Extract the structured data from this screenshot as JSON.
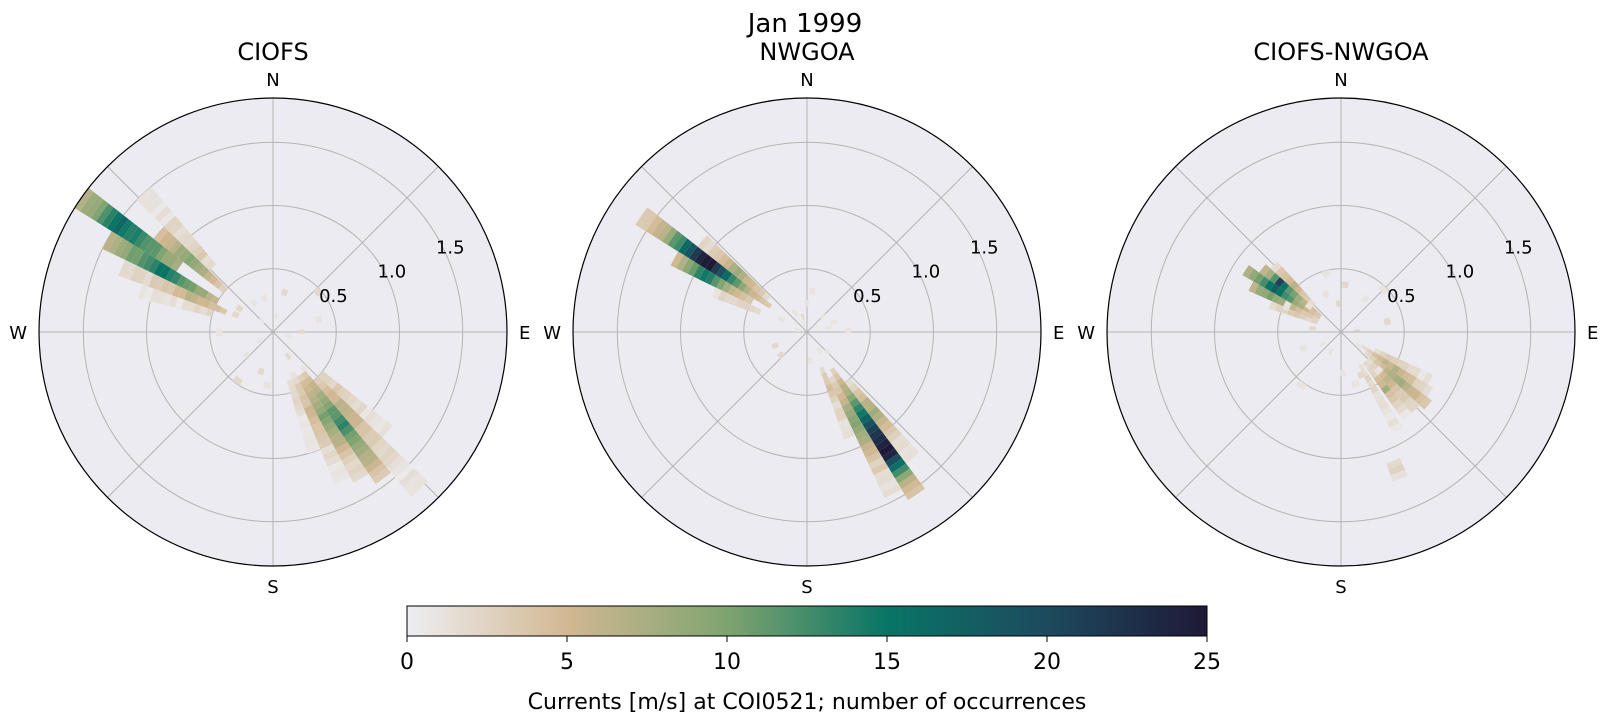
{
  "figure": {
    "title": "Jan 1999"
  },
  "chart_data": [
    {
      "type": "polar-histogram",
      "title": "CIOFS",
      "direction_labels": [
        "N",
        "E",
        "S",
        "W"
      ],
      "r_ticks": [
        0.5,
        1.0,
        1.5
      ],
      "r_tick_labels": [
        "0.5",
        "1.0",
        "1.5"
      ],
      "rlim": [
        0,
        1.85
      ],
      "grid": true,
      "speed_bin_width": 0.05,
      "bins": [
        {
          "dir": 305,
          "width": 6,
          "r0": 0.9,
          "r1": 1.85,
          "counts": [
            7,
            8,
            9,
            10,
            11,
            12,
            12,
            13,
            14,
            14,
            15,
            16,
            15,
            14,
            12,
            10,
            9,
            8,
            7
          ]
        },
        {
          "dir": 299,
          "width": 6,
          "r0": 0.5,
          "r1": 1.5,
          "counts": [
            6,
            7,
            8,
            9,
            10,
            11,
            12,
            13,
            14,
            15,
            15,
            14,
            13,
            12,
            11,
            10,
            9,
            8,
            7,
            6
          ]
        },
        {
          "dir": 311,
          "width": 6,
          "r0": 0.5,
          "r1": 1.2,
          "counts": [
            3,
            4,
            5,
            6,
            7,
            8,
            9,
            10,
            9,
            8,
            7,
            6,
            5,
            4
          ]
        },
        {
          "dir": 293,
          "width": 6,
          "r0": 0.4,
          "r1": 1.3,
          "counts": [
            3,
            4,
            4,
            5,
            5,
            6,
            6,
            5,
            5,
            4,
            4,
            3,
            3,
            2,
            2,
            2,
            2,
            2
          ]
        },
        {
          "dir": 317,
          "width": 6,
          "r0": 0.7,
          "r1": 1.5,
          "counts": [
            2,
            2,
            3,
            3,
            2,
            2,
            2,
            2,
            2,
            2,
            1,
            1,
            1,
            1,
            1,
            1
          ]
        },
        {
          "dir": 287,
          "width": 6,
          "r0": 0.5,
          "r1": 1.1,
          "counts": [
            2,
            2,
            2,
            2,
            1,
            1,
            1,
            1,
            1,
            1,
            1,
            1
          ]
        },
        {
          "dir": 143,
          "width": 6,
          "r0": 0.4,
          "r1": 1.45,
          "counts": [
            4,
            5,
            6,
            7,
            8,
            9,
            10,
            11,
            12,
            13,
            13,
            12,
            11,
            10,
            9,
            8,
            7,
            6,
            5,
            4,
            3
          ]
        },
        {
          "dir": 149,
          "width": 6,
          "r0": 0.4,
          "r1": 1.35,
          "counts": [
            3,
            4,
            5,
            6,
            7,
            8,
            9,
            10,
            10,
            9,
            8,
            7,
            6,
            5,
            4,
            3,
            2,
            2,
            2
          ]
        },
        {
          "dir": 137,
          "width": 6,
          "r0": 0.5,
          "r1": 1.7,
          "counts": [
            3,
            4,
            4,
            5,
            5,
            6,
            6,
            6,
            5,
            5,
            4,
            4,
            3,
            3,
            2,
            2,
            2,
            2,
            1,
            1,
            1,
            1,
            1,
            1
          ]
        },
        {
          "dir": 155,
          "width": 6,
          "r0": 0.4,
          "r1": 1.3,
          "counts": [
            2,
            3,
            3,
            4,
            4,
            5,
            5,
            5,
            4,
            4,
            3,
            3,
            2,
            2,
            2,
            1,
            1,
            1
          ]
        },
        {
          "dir": 131,
          "width": 6,
          "r0": 0.5,
          "r1": 1.2,
          "counts": [
            2,
            2,
            2,
            3,
            3,
            3,
            2,
            2,
            2,
            1,
            1,
            1,
            1,
            1
          ]
        },
        {
          "dir": 161,
          "width": 6,
          "r0": 0.4,
          "r1": 1.0,
          "counts": [
            2,
            2,
            2,
            2,
            2,
            2,
            1,
            1,
            1,
            1,
            1,
            1
          ]
        },
        {
          "dir": 0,
          "width": 360,
          "r0": 0.1,
          "r1": 0.55,
          "counts": [
            1,
            2,
            2,
            1,
            2,
            1,
            1,
            2,
            1
          ]
        }
      ]
    },
    {
      "type": "polar-histogram",
      "title": "NWGOA",
      "direction_labels": [
        "N",
        "E",
        "S",
        "W"
      ],
      "r_ticks": [
        0.5,
        1.0,
        1.5
      ],
      "r_tick_labels": [
        "0.5",
        "1.0",
        "1.5"
      ],
      "rlim": [
        0,
        1.85
      ],
      "grid": true,
      "speed_bin_width": 0.05,
      "bins": [
        {
          "dir": 305,
          "width": 6,
          "r0": 0.35,
          "r1": 1.6,
          "counts": [
            3,
            4,
            5,
            6,
            7,
            9,
            11,
            13,
            16,
            19,
            22,
            25,
            25,
            24,
            22,
            19,
            16,
            13,
            11,
            9,
            7,
            6,
            5,
            4,
            3
          ]
        },
        {
          "dir": 299,
          "width": 6,
          "r0": 0.5,
          "r1": 1.2,
          "counts": [
            3,
            4,
            5,
            6,
            8,
            10,
            12,
            14,
            15,
            13,
            11,
            9,
            7,
            5
          ]
        },
        {
          "dir": 311,
          "width": 6,
          "r0": 0.4,
          "r1": 1.1,
          "counts": [
            2,
            3,
            4,
            5,
            6,
            7,
            8,
            7,
            6,
            5,
            4,
            3,
            2,
            2
          ]
        },
        {
          "dir": 293,
          "width": 6,
          "r0": 0.4,
          "r1": 0.8,
          "counts": [
            2,
            2,
            3,
            3,
            2,
            2,
            2,
            1
          ]
        },
        {
          "dir": 146,
          "width": 6,
          "r0": 0.35,
          "r1": 1.55,
          "counts": [
            3,
            4,
            5,
            6,
            7,
            9,
            11,
            13,
            15,
            17,
            19,
            21,
            22,
            23,
            24,
            25,
            24,
            20,
            16,
            12,
            9,
            7,
            5,
            4
          ]
        },
        {
          "dir": 152,
          "width": 6,
          "r0": 0.4,
          "r1": 1.45,
          "counts": [
            2,
            3,
            4,
            5,
            6,
            7,
            8,
            9,
            10,
            9,
            8,
            7,
            6,
            5,
            4,
            3,
            3,
            2,
            2,
            1,
            1
          ]
        },
        {
          "dir": 140,
          "width": 6,
          "r0": 0.5,
          "r1": 1.3,
          "counts": [
            2,
            3,
            4,
            5,
            6,
            7,
            8,
            7,
            6,
            5,
            4,
            3,
            2,
            2,
            1,
            1
          ]
        },
        {
          "dir": 158,
          "width": 6,
          "r0": 0.3,
          "r1": 0.9,
          "counts": [
            2,
            3,
            3,
            4,
            3,
            3,
            2,
            2,
            2,
            1,
            1,
            1
          ]
        },
        {
          "dir": 0,
          "width": 360,
          "r0": 0.05,
          "r1": 0.35,
          "counts": [
            1,
            2,
            1,
            1,
            2,
            1
          ]
        }
      ]
    },
    {
      "type": "polar-histogram",
      "title": "CIOFS-NWGOA",
      "direction_labels": [
        "N",
        "E",
        "S",
        "W"
      ],
      "r_ticks": [
        0.5,
        1.0,
        1.5
      ],
      "r_tick_labels": [
        "0.5",
        "1.0",
        "1.5"
      ],
      "rlim": [
        0,
        1.85
      ],
      "grid": true,
      "speed_bin_width": 0.05,
      "bins": [
        {
          "dir": 303,
          "width": 6,
          "r0": 0.2,
          "r1": 0.9,
          "counts": [
            3,
            4,
            5,
            7,
            9,
            11,
            13,
            15,
            17,
            15,
            13,
            11,
            9,
            7
          ]
        },
        {
          "dir": 309,
          "width": 6,
          "r0": 0.2,
          "r1": 0.8,
          "counts": [
            3,
            4,
            5,
            6,
            8,
            10,
            12,
            15,
            21,
            12,
            8,
            6
          ]
        },
        {
          "dir": 297,
          "width": 6,
          "r0": 0.2,
          "r1": 0.8,
          "counts": [
            2,
            3,
            4,
            5,
            6,
            7,
            8,
            9,
            10,
            9,
            8,
            6
          ]
        },
        {
          "dir": 315,
          "width": 6,
          "r0": 0.3,
          "r1": 0.75,
          "counts": [
            2,
            3,
            4,
            5,
            6,
            5,
            4,
            3,
            2
          ]
        },
        {
          "dir": 291,
          "width": 6,
          "r0": 0.2,
          "r1": 0.6,
          "counts": [
            2,
            2,
            3,
            3,
            3,
            2,
            2,
            2
          ]
        },
        {
          "dir": 130,
          "width": 6,
          "r0": 0.25,
          "r1": 0.9,
          "counts": [
            2,
            3,
            4,
            5,
            6,
            7,
            8,
            8,
            7,
            6,
            5,
            4,
            3
          ]
        },
        {
          "dir": 124,
          "width": 6,
          "r0": 0.2,
          "r1": 0.85,
          "counts": [
            2,
            3,
            4,
            5,
            6,
            6,
            7,
            6,
            5,
            4,
            3,
            2,
            2
          ]
        },
        {
          "dir": 136,
          "width": 6,
          "r0": 0.3,
          "r1": 0.85,
          "counts": [
            2,
            3,
            4,
            5,
            6,
            5,
            4,
            3,
            3,
            2,
            2
          ]
        },
        {
          "dir": 142,
          "width": 6,
          "r0": 0.3,
          "r1": 0.85,
          "counts": [
            2,
            2,
            3,
            4,
            5,
            8,
            4,
            3,
            2,
            2,
            1
          ]
        },
        {
          "dir": 118,
          "width": 6,
          "r0": 0.3,
          "r1": 0.8,
          "counts": [
            2,
            2,
            3,
            3,
            3,
            2,
            2,
            2,
            1,
            1
          ]
        },
        {
          "dir": 150,
          "width": 6,
          "r0": 0.3,
          "r1": 0.9,
          "counts": [
            1,
            2,
            2,
            2,
            2,
            1,
            1,
            1,
            1,
            1,
            1,
            1
          ]
        },
        {
          "dir": 158,
          "width": 6,
          "r0": 1.1,
          "r1": 1.25,
          "counts": [
            2,
            2,
            1
          ]
        },
        {
          "dir": 0,
          "width": 360,
          "r0": 0.05,
          "r1": 0.55,
          "counts": [
            1,
            2,
            1,
            2,
            1,
            1,
            2,
            1,
            1,
            1
          ]
        }
      ]
    }
  ],
  "colorbar": {
    "label": "Currents [m/s] at COI0521; number of occurrences",
    "min": 0,
    "max": 25,
    "ticks": [
      0,
      5,
      10,
      15,
      20,
      25
    ],
    "tick_labels": [
      "0",
      "5",
      "10",
      "15",
      "20",
      "25"
    ],
    "colormap_stops": [
      {
        "v": 0,
        "color": "#edeef2"
      },
      {
        "v": 5,
        "color": "#d2b892"
      },
      {
        "v": 10,
        "color": "#7fa46f"
      },
      {
        "v": 15,
        "color": "#087566"
      },
      {
        "v": 20,
        "color": "#1d4a5e"
      },
      {
        "v": 25,
        "color": "#1f1937"
      }
    ]
  },
  "colors": {
    "axes_background": "#ebebf1",
    "grid": "#b4b4b4",
    "spine": "#000000"
  }
}
